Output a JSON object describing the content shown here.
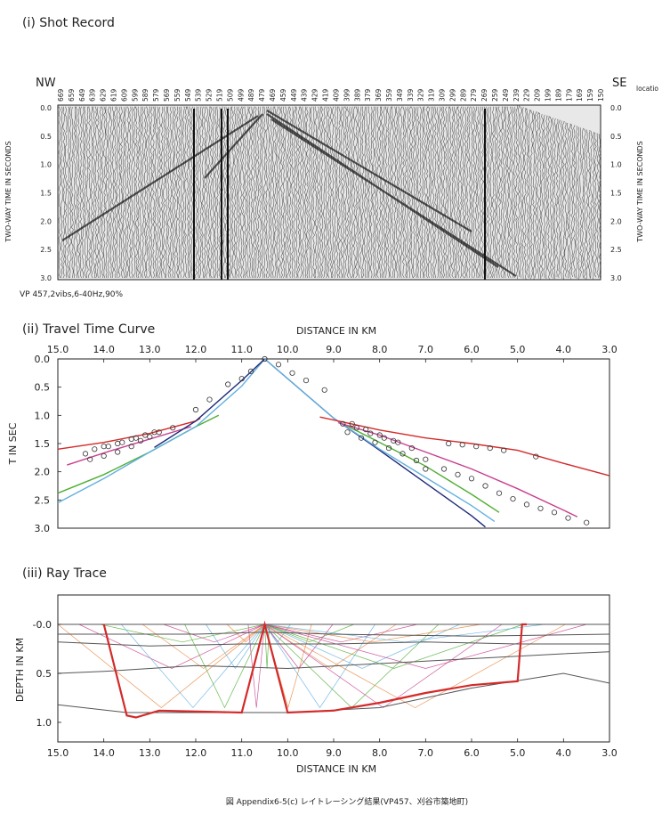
{
  "panels": {
    "shot": {
      "title": "(i)  Shot Record",
      "left_dir": "NW",
      "right_dir": "SE",
      "location_label": "locatio",
      "ylabel": "TWO-WAY TIME IN SECONDS",
      "vp_caption": "VP  457,2vibs,6-40Hz,90%",
      "station_labels": [
        "669",
        "659",
        "649",
        "639",
        "629",
        "619",
        "609",
        "599",
        "589",
        "579",
        "569",
        "559",
        "549",
        "539",
        "529",
        "519",
        "509",
        "499",
        "489",
        "479",
        "469",
        "459",
        "449",
        "439",
        "429",
        "419",
        "409",
        "399",
        "389",
        "379",
        "369",
        "359",
        "349",
        "339",
        "329",
        "319",
        "309",
        "299",
        "289",
        "279",
        "269",
        "259",
        "249",
        "239",
        "229",
        "209",
        "199",
        "189",
        "179",
        "169",
        "159",
        "150"
      ],
      "yticks": [
        "0.0",
        "0.5",
        "1.0",
        "1.5",
        "2.0",
        "2.5",
        "3.0"
      ]
    },
    "travel": {
      "title": "(ii)  Travel Time Curve",
      "xlabel": "DISTANCE IN KM",
      "ylabel": "T IN SEC"
    },
    "ray": {
      "title": "(iii)  Ray Trace",
      "xlabel": "DISTANCE IN KM",
      "ylabel": "DEPTH IN KM"
    }
  },
  "caption": "図 Appendix6-5(c)  レイトレーシング結果(VP457、刈谷市築地町)",
  "colors": {
    "red": "#d42a2a",
    "magenta": "#c8408f",
    "green": "#4fae32",
    "lightblue": "#62b0e0",
    "darkblue": "#1f2a7a",
    "orange": "#e8853a",
    "gray": "#555555",
    "black": "#222222"
  },
  "chart_data": [
    {
      "type": "line",
      "title": "(ii) Travel Time Curve",
      "xlabel": "DISTANCE IN KM",
      "ylabel": "T IN SEC",
      "xlim": [
        15.0,
        3.0
      ],
      "ylim": [
        0.0,
        3.0
      ],
      "x_ticks": [
        "15.0",
        "14.0",
        "13.0",
        "12.0",
        "11.0",
        "10.0",
        "9.0",
        "8.0",
        "7.0",
        "6.0",
        "5.0",
        "4.0",
        "3.0"
      ],
      "y_ticks": [
        "0.0",
        "0.5",
        "1.0",
        "1.5",
        "2.0",
        "2.5",
        "3.0"
      ],
      "series": [
        {
          "color": "red",
          "x": [
            15.0,
            14.0,
            13.0,
            12.0,
            11.9
          ],
          "y": [
            1.6,
            1.48,
            1.32,
            1.1,
            1.05
          ]
        },
        {
          "color": "magenta",
          "x": [
            14.8,
            13.9,
            13.0,
            12.1
          ],
          "y": [
            1.88,
            1.64,
            1.42,
            1.2
          ]
        },
        {
          "color": "green",
          "x": [
            15.0,
            14.0,
            13.0,
            12.0,
            11.5
          ],
          "y": [
            2.38,
            2.05,
            1.65,
            1.2,
            1.0
          ]
        },
        {
          "color": "lightblue",
          "x": [
            15.0,
            14.0,
            13.0,
            12.0,
            11.0,
            10.5
          ],
          "y": [
            2.55,
            2.12,
            1.65,
            1.2,
            0.48,
            0.0
          ]
        },
        {
          "color": "darkblue",
          "x": [
            12.9,
            12.0,
            11.0,
            10.5
          ],
          "y": [
            1.57,
            1.1,
            0.38,
            0.0
          ]
        },
        {
          "color": "darkblue",
          "x": [
            10.5,
            9.0,
            8.0,
            7.0,
            6.0,
            5.7
          ],
          "y": [
            0.0,
            1.05,
            1.62,
            2.2,
            2.78,
            2.98
          ]
        },
        {
          "color": "lightblue",
          "x": [
            10.5,
            9.0,
            8.0,
            7.0,
            6.0,
            5.5
          ],
          "y": [
            0.0,
            1.05,
            1.6,
            2.1,
            2.6,
            2.88
          ]
        },
        {
          "color": "green",
          "x": [
            8.8,
            8.0,
            7.0,
            6.0,
            5.4
          ],
          "y": [
            1.15,
            1.48,
            1.9,
            2.4,
            2.72
          ]
        },
        {
          "color": "magenta",
          "x": [
            8.9,
            8.0,
            7.0,
            6.0,
            5.0,
            4.0,
            3.7
          ],
          "y": [
            1.13,
            1.35,
            1.65,
            1.95,
            2.3,
            2.68,
            2.8
          ]
        },
        {
          "color": "red",
          "x": [
            9.3,
            8.0,
            7.0,
            6.0,
            5.0,
            4.0,
            3.0
          ],
          "y": [
            1.03,
            1.26,
            1.4,
            1.5,
            1.62,
            1.85,
            2.07
          ]
        }
      ],
      "picks": {
        "x": [
          14.3,
          14.0,
          13.7,
          13.4,
          13.2,
          13.0,
          12.8,
          12.5,
          12.0,
          11.7,
          11.3,
          11.0,
          10.8,
          10.5,
          10.2,
          9.9,
          9.6,
          9.2,
          8.8,
          8.5,
          8.2,
          7.9,
          7.6,
          7.3,
          7.0,
          14.4,
          14.2,
          13.9,
          13.6,
          13.3,
          13.1,
          12.9,
          14.0,
          13.7,
          13.4,
          7.0,
          6.6,
          6.3,
          6.0,
          5.7,
          5.4,
          5.1,
          4.8,
          4.5,
          4.2,
          3.9,
          3.5,
          6.5,
          6.2,
          5.9,
          5.6,
          5.3,
          4.6,
          8.7,
          8.4,
          8.1,
          7.8,
          7.5,
          7.2,
          8.6,
          8.3,
          8.0,
          7.7
        ],
        "y": [
          1.78,
          1.72,
          1.65,
          1.55,
          1.45,
          1.38,
          1.3,
          1.22,
          0.9,
          0.72,
          0.45,
          0.35,
          0.22,
          0.0,
          0.1,
          0.25,
          0.38,
          0.55,
          1.15,
          1.22,
          1.32,
          1.4,
          1.48,
          1.58,
          1.95,
          1.68,
          1.6,
          1.55,
          1.48,
          1.4,
          1.35,
          1.3,
          1.55,
          1.5,
          1.42,
          1.78,
          1.95,
          2.05,
          2.12,
          2.25,
          2.38,
          2.48,
          2.58,
          2.65,
          2.72,
          2.82,
          2.9,
          1.5,
          1.52,
          1.55,
          1.58,
          1.62,
          1.73,
          1.3,
          1.4,
          1.48,
          1.58,
          1.68,
          1.8,
          1.15,
          1.25,
          1.35,
          1.45
        ]
      }
    },
    {
      "type": "line",
      "title": "(iii) Ray Trace",
      "xlabel": "DISTANCE IN KM",
      "ylabel": "DEPTH IN KM",
      "xlim": [
        15.0,
        3.0
      ],
      "ylim": [
        -0.3,
        1.2
      ],
      "x_ticks": [
        "15.0",
        "14.0",
        "13.0",
        "12.0",
        "11.0",
        "10.0",
        "9.0",
        "8.0",
        "7.0",
        "6.0",
        "5.0",
        "4.0",
        "3.0"
      ],
      "y_ticks": [
        "-0.0",
        "0.5",
        "1.0"
      ],
      "layers": [
        {
          "color": "gray",
          "x": [
            15.0,
            3.0
          ],
          "y": [
            0.0,
            0.0
          ]
        },
        {
          "color": "gray",
          "x": [
            15.0,
            12.0,
            10.5,
            9.0,
            6.0,
            3.0
          ],
          "y": [
            0.1,
            0.1,
            0.08,
            0.1,
            0.12,
            0.1
          ]
        },
        {
          "color": "gray",
          "x": [
            15.0,
            13.0,
            11.0,
            9.0,
            7.0,
            5.0,
            3.0
          ],
          "y": [
            0.18,
            0.22,
            0.2,
            0.2,
            0.18,
            0.2,
            0.2
          ]
        },
        {
          "color": "gray",
          "x": [
            15.0,
            14.0,
            12.0,
            10.0,
            8.0,
            6.0,
            4.0,
            3.0
          ],
          "y": [
            0.5,
            0.48,
            0.42,
            0.45,
            0.4,
            0.35,
            0.3,
            0.28
          ]
        },
        {
          "color": "gray",
          "x": [
            15.0,
            13.5,
            12.0,
            10.0,
            8.0,
            6.0,
            4.0,
            3.0
          ],
          "y": [
            0.82,
            0.9,
            0.9,
            0.9,
            0.85,
            0.65,
            0.5,
            0.6
          ]
        }
      ],
      "reflector": {
        "color": "red",
        "x": [
          14.0,
          13.5,
          13.3,
          12.8,
          11.0,
          10.5,
          10.0,
          9.0,
          8.0,
          7.0,
          6.0,
          5.0,
          4.9,
          4.8
        ],
        "y": [
          0.0,
          0.93,
          0.95,
          0.88,
          0.9,
          0.0,
          0.9,
          0.88,
          0.8,
          0.7,
          0.62,
          0.58,
          0.0,
          0.0
        ]
      }
    }
  ]
}
